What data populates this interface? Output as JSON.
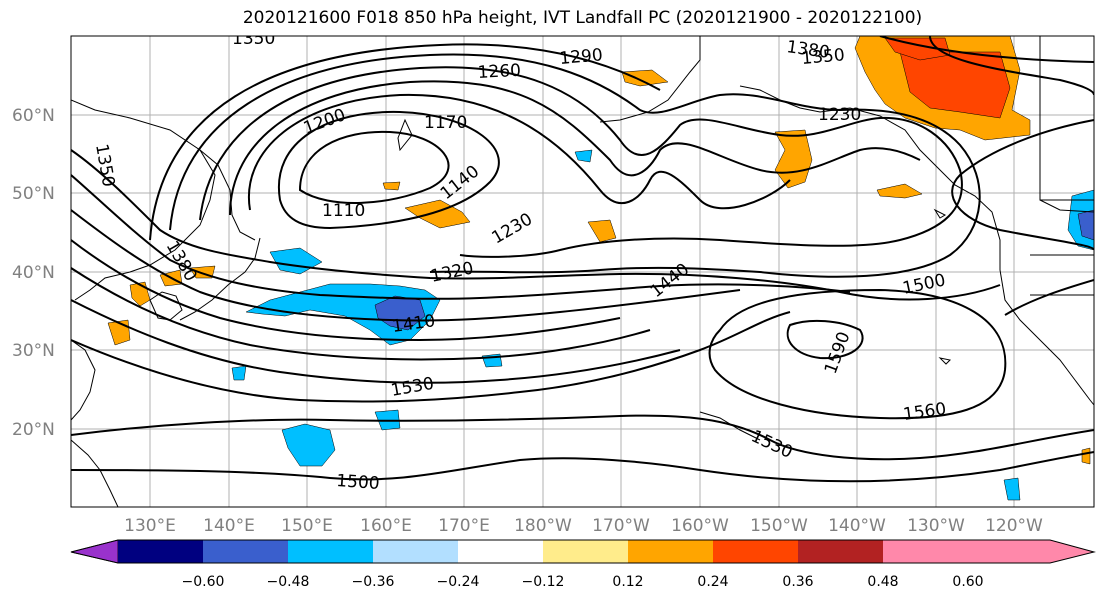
{
  "title": "2020121600 F018 850 hPa height, IVT Landfall PC (2020121900 - 2020122100)",
  "map": {
    "lat_labels": [
      "60°N",
      "50°N",
      "40°N",
      "30°N",
      "20°N"
    ],
    "lon_labels": [
      "130°E",
      "140°E",
      "150°E",
      "160°E",
      "170°E",
      "180°W",
      "170°W",
      "160°W",
      "150°W",
      "140°W",
      "130°W",
      "120°W"
    ],
    "contour_labels": [
      "1350",
      "1380",
      "1290",
      "1260",
      "1350",
      "1230",
      "1200",
      "1170",
      "1350",
      "1140",
      "1110",
      "1230",
      "1380",
      "1320",
      "1440",
      "1500",
      "1410",
      "1590",
      "1530",
      "1560",
      "1530",
      "1500"
    ]
  },
  "colorbar": {
    "ticks": [
      "−0.60",
      "−0.48",
      "−0.36",
      "−0.24",
      "−0.12",
      "0.12",
      "0.24",
      "0.36",
      "0.48",
      "0.60"
    ],
    "colors": [
      "#9932cc",
      "#000080",
      "#3a5fcd",
      "#00bfff",
      "#b2dfff",
      "#ffffff",
      "#ffec8b",
      "#ffa500",
      "#ff4500",
      "#b22222",
      "#ff88aa"
    ]
  }
}
